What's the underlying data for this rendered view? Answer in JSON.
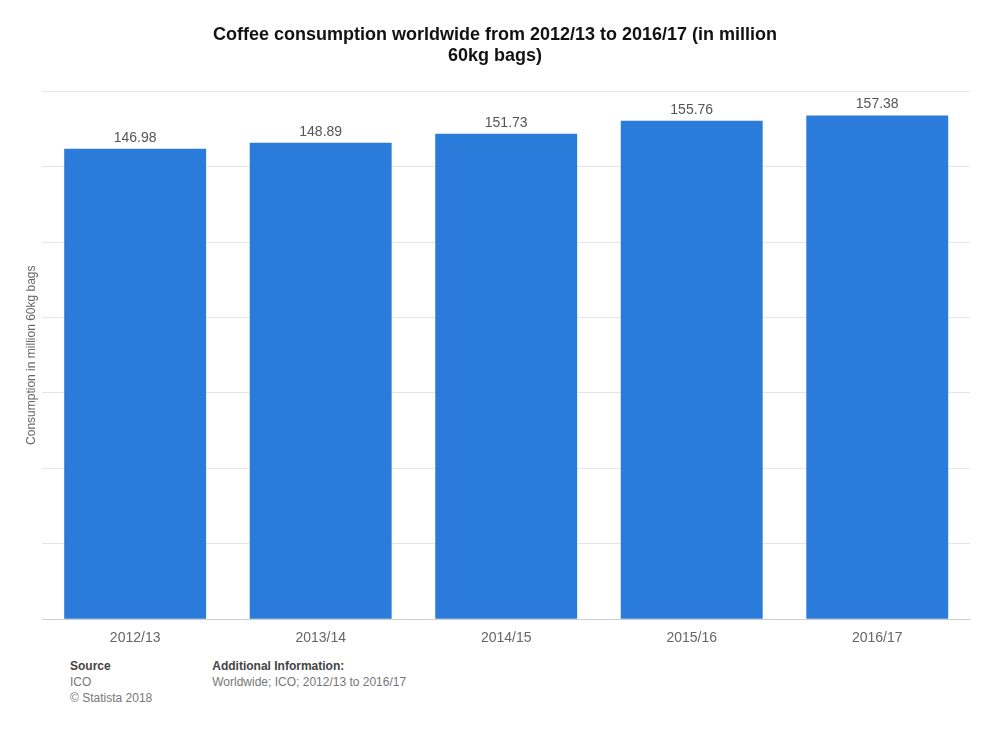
{
  "chart_data": {
    "type": "bar",
    "title": "Coffee consumption worldwide from 2012/13 to 2016/17 (in million\n60kg bags)",
    "y_label": "Consumption in million 60kg bags",
    "categories": [
      "2012/13",
      "2013/14",
      "2014/15",
      "2015/16",
      "2016/17"
    ],
    "values": [
      146.98,
      148.89,
      151.73,
      155.76,
      157.38
    ],
    "color": "#2b7bda",
    "ylim": [
      0,
      165
    ],
    "yticks": [
      0,
      23.571428571428573,
      47.142857142857146,
      70.71428571428572,
      94.28571428571429,
      117.85714285714286,
      141.42857142857144,
      165
    ],
    "grid": true,
    "tick_labels": "x",
    "data_labels": true,
    "annotations": [
      [
        "Source",
        "ICO",
        "© Statista 2018"
      ],
      [
        "Additional Information:",
        "Worldwide; ICO; 2012/13 to 2016/17"
      ]
    ]
  }
}
